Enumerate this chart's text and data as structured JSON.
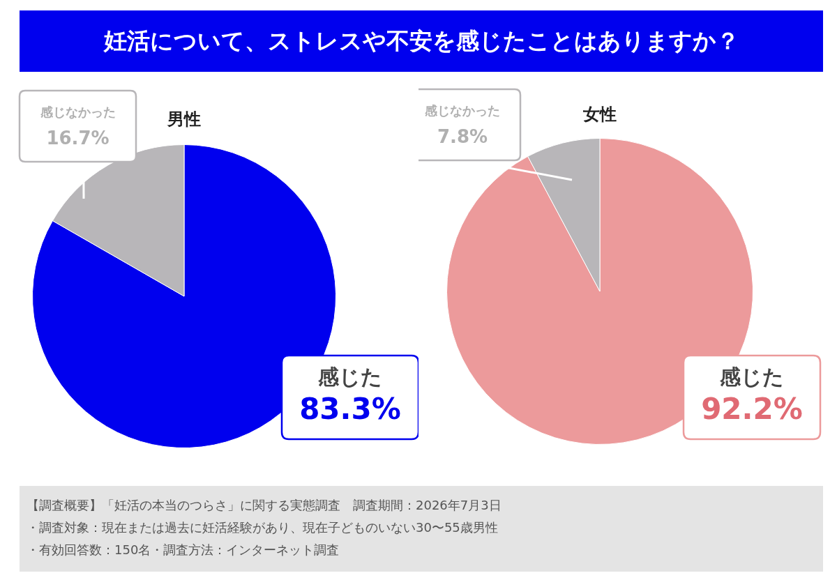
{
  "chart_data": [
    {
      "type": "other",
      "title": "妊活について、ストレスや不安を感じたことはありますか？"
    },
    {
      "type": "pie",
      "title": "男性",
      "categories": [
        "感じた",
        "感じなかった"
      ],
      "values": [
        83.3,
        16.7
      ],
      "colors": [
        "#0000ee",
        "#b8b6b9"
      ],
      "value_labels": [
        "83.3%",
        "16.7%"
      ],
      "legend": false
    },
    {
      "type": "pie",
      "title": "女性",
      "categories": [
        "感じた",
        "感じなかった"
      ],
      "values": [
        92.2,
        7.8
      ],
      "colors": [
        "#ec9a9b",
        "#b8b6b9"
      ],
      "value_labels": [
        "92.2%",
        "7.8%"
      ],
      "legend": false
    },
    {
      "type": "other",
      "annotations": [
        "【調査概要】「妊活の本当のつらさ」に関する実態調査　調査期間：2026年7月3日",
        "・調査対象：現在または過去に妊活経験があり、現在子どものいない30〜55歳男性",
        "・有効回答数：150名・調査方法：インターネット調査"
      ]
    }
  ]
}
